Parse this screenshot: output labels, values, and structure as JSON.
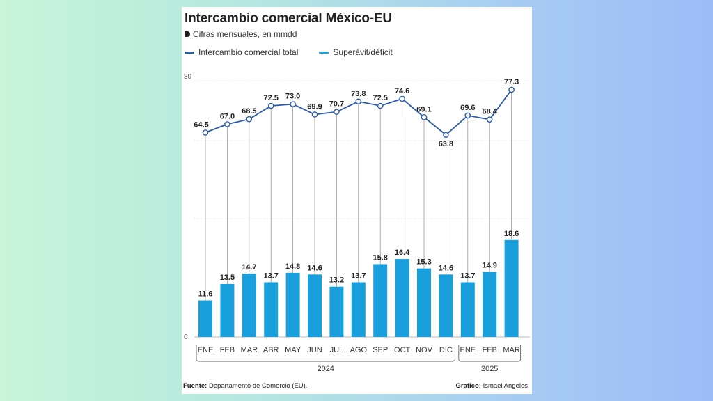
{
  "header": {
    "title": "Intercambio comercial México-EU",
    "subtitle": "Cifras mensuales, en mmdd"
  },
  "legend": {
    "line_label": "Intercambio comercial total",
    "bar_label": "Superávit/déficit"
  },
  "colors": {
    "line": "#2b5aab",
    "bar": "#199fdc",
    "text": "#222222",
    "grid": "#bbbbbb"
  },
  "footer": {
    "source_label": "Fuente:",
    "source_text": "Departamento de Comercio (EU).",
    "credit_label": "Grafico:",
    "credit_text": "Ismael Angeles"
  },
  "chart_data": {
    "type": "bar",
    "categories": [
      "ENE",
      "FEB",
      "MAR",
      "ABR",
      "MAY",
      "JUN",
      "JUL",
      "AGO",
      "SEP",
      "OCT",
      "NOV",
      "DIC",
      "ENE",
      "FEB",
      "MAR"
    ],
    "year_groups": [
      {
        "label": "2024",
        "count": 12
      },
      {
        "label": "2025",
        "count": 3
      }
    ],
    "series": [
      {
        "name": "Intercambio comercial total",
        "type": "line",
        "values": [
          64.5,
          67.0,
          68.5,
          72.5,
          73.0,
          69.9,
          70.7,
          73.8,
          72.5,
          74.6,
          69.1,
          63.8,
          69.6,
          68.4,
          77.3
        ]
      },
      {
        "name": "Superávit/déficit",
        "type": "bar",
        "values": [
          11.6,
          13.5,
          14.7,
          13.7,
          14.8,
          14.6,
          13.2,
          13.7,
          15.8,
          16.4,
          15.3,
          14.6,
          13.7,
          14.9,
          18.6
        ]
      }
    ],
    "y_ticks": [
      "80",
      "0"
    ],
    "grid": true,
    "legend_position": "top-left"
  }
}
